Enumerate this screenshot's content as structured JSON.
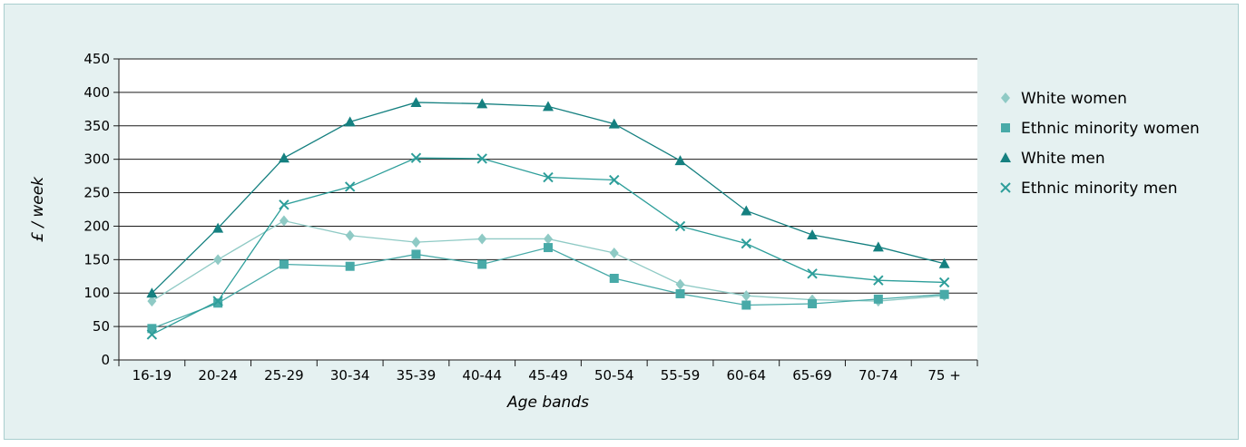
{
  "chart_data": {
    "type": "line",
    "title": "",
    "xlabel": "Age bands",
    "ylabel": "£ / week",
    "ylim": [
      0,
      450
    ],
    "yticks": [
      0,
      50,
      100,
      150,
      200,
      250,
      300,
      350,
      400,
      450
    ],
    "grid": true,
    "legend": "right",
    "categories": [
      "16-19",
      "20-24",
      "25-29",
      "30-34",
      "35-39",
      "40-44",
      "45-49",
      "50-54",
      "55-59",
      "60-64",
      "65-69",
      "70-74",
      "75 +"
    ],
    "series": [
      {
        "name": "White women",
        "marker": "diamond",
        "color": "#8fcac5",
        "values": [
          88,
          150,
          208,
          186,
          176,
          181,
          181,
          160,
          113,
          96,
          90,
          88,
          96
        ]
      },
      {
        "name": "Ethnic minority women",
        "marker": "square",
        "color": "#48aaa8",
        "values": [
          47,
          85,
          143,
          140,
          158,
          143,
          168,
          122,
          99,
          82,
          84,
          91,
          98
        ]
      },
      {
        "name": "White men",
        "marker": "triangle",
        "color": "#158080",
        "values": [
          100,
          197,
          302,
          356,
          385,
          383,
          379,
          353,
          298,
          223,
          187,
          169,
          144
        ]
      },
      {
        "name": "Ethnic minority men",
        "marker": "cross",
        "color": "#2d9e9a",
        "values": [
          38,
          88,
          232,
          259,
          302,
          301,
          273,
          269,
          200,
          174,
          129,
          119,
          116
        ]
      }
    ]
  }
}
